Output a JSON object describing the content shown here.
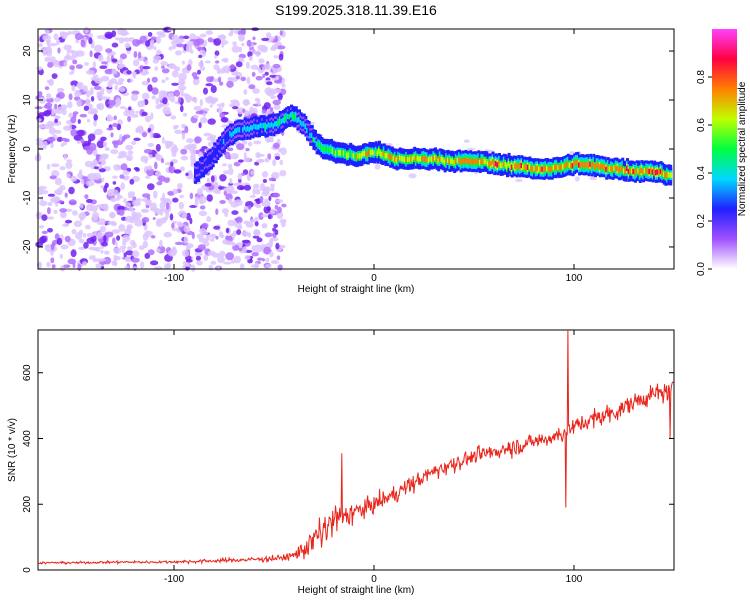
{
  "title": "S199.2025.318.11.39.E16",
  "chart_data": [
    {
      "type": "heatmap",
      "title": "S199.2025.318.11.39.E16",
      "xlabel": "Height of straight line (km)",
      "ylabel": "Frequency (Hz)",
      "xlim": [
        -168,
        150
      ],
      "ylim": [
        -24.5,
        24.5
      ],
      "xticks": [
        -100,
        0,
        100
      ],
      "yticks": [
        -20,
        -10,
        0,
        10,
        20
      ],
      "colorbar": {
        "label": "Normalized spectral amplitude",
        "range": [
          0,
          1
        ],
        "ticks": [
          "0.0",
          "0.2",
          "0.4",
          "0.6",
          "0.8"
        ],
        "tick_values": [
          0.0,
          0.2,
          0.4,
          0.6,
          0.8
        ],
        "colormap": [
          "#ffffff",
          "#a050ff",
          "#2020ff",
          "#00d8ff",
          "#00ff40",
          "#c0ff00",
          "#ff8000",
          "#ff0040",
          "#ff40ff"
        ]
      },
      "noise_region": {
        "x": [
          -168,
          -45
        ],
        "y": [
          -24.5,
          24.5
        ],
        "amplitude": 0.15
      },
      "ridge": {
        "x": [
          -90,
          -82,
          -75,
          -68,
          -60,
          -50,
          -42,
          -38,
          -34,
          -30,
          -25,
          -20,
          -10,
          0,
          10,
          20,
          30,
          40,
          50,
          60,
          70,
          80,
          90,
          100,
          110,
          120,
          130,
          140,
          148
        ],
        "y": [
          -5,
          -2,
          2,
          4,
          4.5,
          5,
          7,
          6,
          4,
          1.5,
          0,
          -0.5,
          -1.5,
          -0.5,
          -2,
          -2,
          -2,
          -2.5,
          -2.5,
          -3,
          -3.5,
          -4,
          -4,
          -3,
          -3.5,
          -4,
          -4.5,
          -4.5,
          -5.5
        ],
        "amplitude": [
          0.25,
          0.28,
          0.3,
          0.35,
          0.4,
          0.42,
          0.45,
          0.4,
          0.35,
          0.4,
          0.5,
          0.55,
          0.6,
          0.62,
          0.65,
          0.66,
          0.67,
          0.7,
          0.72,
          0.73,
          0.72,
          0.75,
          0.72,
          0.74,
          0.76,
          0.75,
          0.78,
          0.8,
          0.6
        ]
      }
    },
    {
      "type": "line",
      "xlabel": "Height of straight line (km)",
      "ylabel": "SNR (10 * v/v)",
      "xlim": [
        -168,
        150
      ],
      "ylim": [
        0,
        730
      ],
      "xticks": [
        -100,
        0,
        100
      ],
      "yticks": [
        0,
        200,
        400,
        600
      ],
      "series": [
        {
          "name": "SNR",
          "color": "#e8261c",
          "x": [
            -168,
            -150,
            -130,
            -110,
            -90,
            -80,
            -70,
            -60,
            -50,
            -45,
            -40,
            -35,
            -30,
            -25,
            -20,
            -15,
            -10,
            -5,
            0,
            10,
            20,
            30,
            40,
            50,
            60,
            70,
            80,
            90,
            95,
            100,
            110,
            120,
            130,
            140,
            150
          ],
          "y": [
            22,
            22,
            24,
            24,
            26,
            28,
            30,
            32,
            35,
            38,
            45,
            65,
            90,
            120,
            150,
            165,
            175,
            185,
            200,
            230,
            265,
            300,
            325,
            345,
            360,
            375,
            390,
            405,
            420,
            435,
            460,
            480,
            510,
            535,
            545
          ],
          "noise": [
            5,
            5,
            6,
            6,
            8,
            10,
            10,
            12,
            14,
            16,
            18,
            45,
            80,
            90,
            80,
            60,
            55,
            50,
            45,
            40,
            40,
            38,
            38,
            38,
            38,
            40,
            40,
            42,
            45,
            45,
            45,
            45,
            45,
            45,
            45
          ],
          "spikes": [
            {
              "x": -16,
              "y": 355
            },
            {
              "x": 97,
              "y": 730
            },
            {
              "x": 96,
              "y": 190
            },
            {
              "x": 148,
              "y": 400
            },
            {
              "x": 150,
              "y": 600
            }
          ]
        }
      ]
    }
  ]
}
